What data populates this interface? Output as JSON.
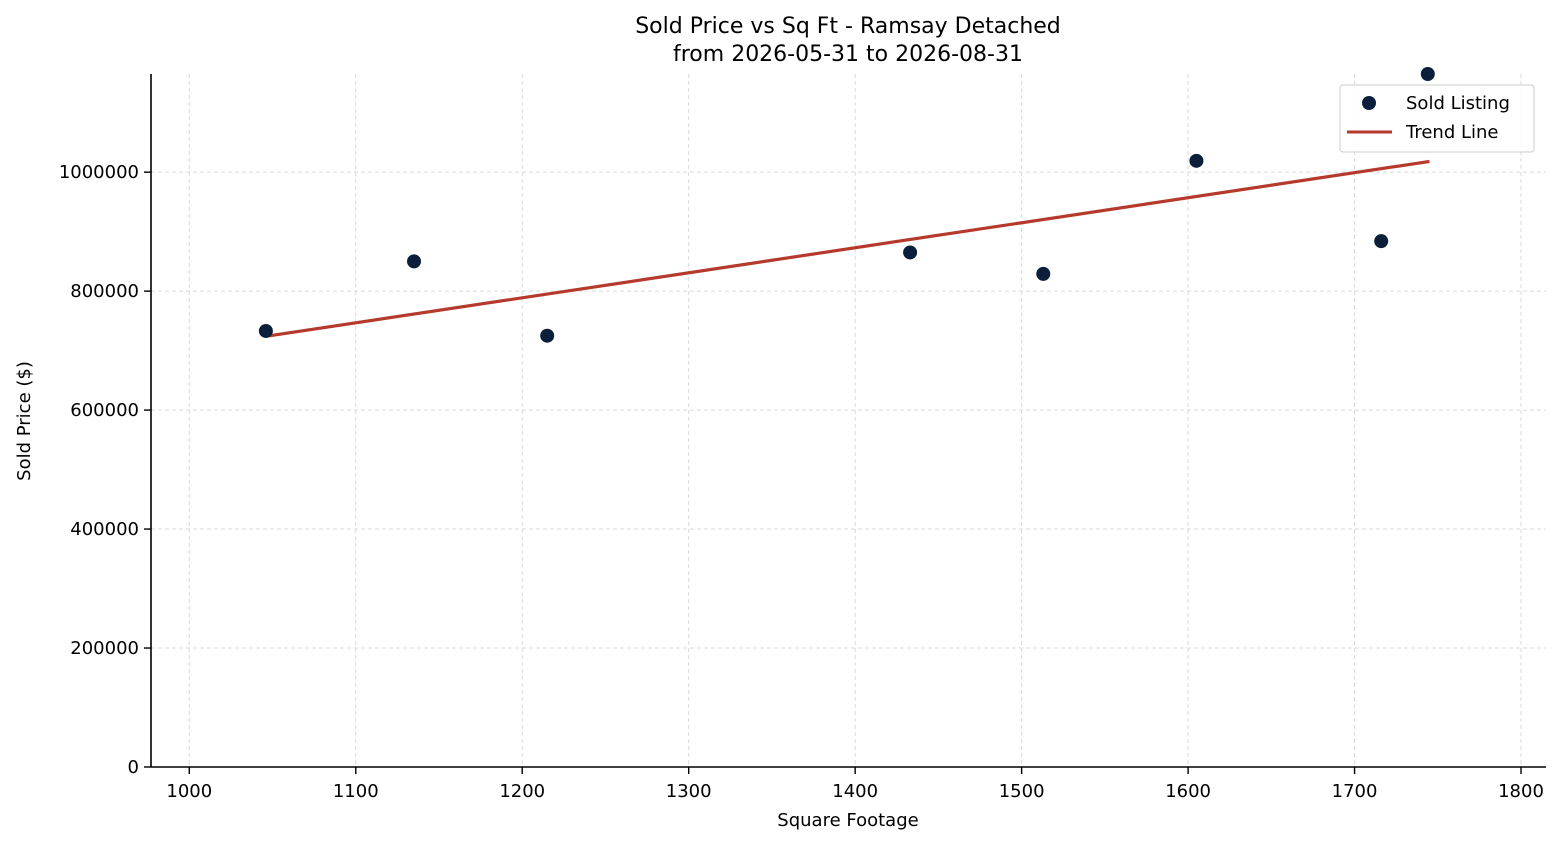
{
  "chart_data": {
    "type": "scatter",
    "title": "Sold Price vs Sq Ft - Ramsay Detached",
    "subtitle": "from 2026-05-31 to 2026-08-31",
    "xlabel": "Square Footage",
    "ylabel": "Sold Price ($)",
    "xlim": [
      977,
      1815
    ],
    "ylim": [
      0,
      1165000
    ],
    "x_ticks": [
      1000,
      1100,
      1200,
      1300,
      1400,
      1500,
      1600,
      1700,
      1800
    ],
    "y_ticks": [
      0,
      200000,
      400000,
      600000,
      800000,
      1000000
    ],
    "grid": true,
    "legend_position": "top-right",
    "series": [
      {
        "name": "Sold Listing",
        "kind": "scatter",
        "color": "#0b1f3a",
        "points": [
          {
            "x": 1046,
            "y": 733000
          },
          {
            "x": 1135,
            "y": 850000
          },
          {
            "x": 1215,
            "y": 725000
          },
          {
            "x": 1433,
            "y": 865000
          },
          {
            "x": 1513,
            "y": 829000
          },
          {
            "x": 1605,
            "y": 1019000
          },
          {
            "x": 1716,
            "y": 884000
          },
          {
            "x": 1744,
            "y": 1165000
          }
        ]
      },
      {
        "name": "Trend Line",
        "kind": "line",
        "color": "#b63a2b",
        "points": [
          {
            "x": 1046,
            "y": 724000
          },
          {
            "x": 1745,
            "y": 1018000
          }
        ]
      }
    ]
  }
}
